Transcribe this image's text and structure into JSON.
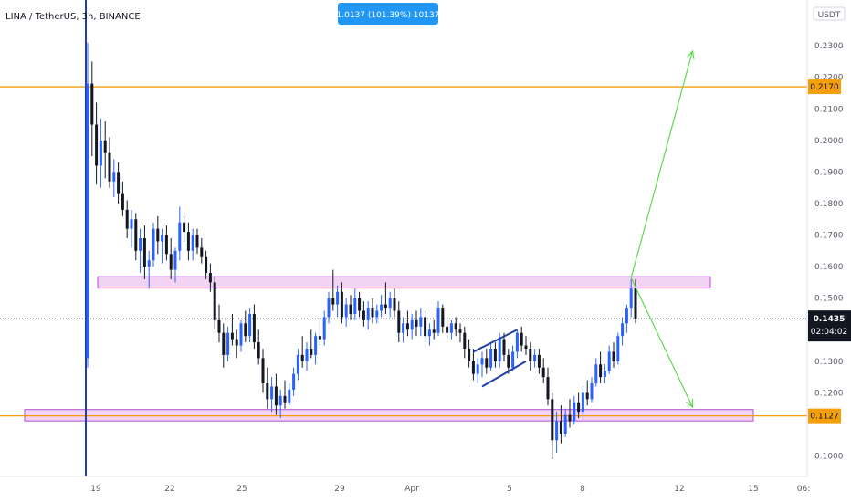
{
  "symbol_title": "LINA / TetherUS, 3h, BINANCE",
  "measure_badge": "1.0137 (101.39%) 10137",
  "currency_label": "USDT",
  "current_price": "0.1435",
  "countdown": "02:04:02",
  "colors": {
    "up": "#2962ff",
    "down": "#131722",
    "level_line": "#f59e0b",
    "zone_fill": "#f3d3f3",
    "zone_stroke": "#b04fd6",
    "arrow": "#5cdc4a",
    "badge_bg": "#2196f3",
    "vline": "#1f3fb0",
    "price_tag_bg": "#131722"
  },
  "chart_data": {
    "type": "candlestick",
    "title": "LINA / TetherUS, 3h, BINANCE",
    "x_ticks": [
      "19",
      "22",
      "25",
      "29",
      "Apr",
      "5",
      "8",
      "12",
      "15",
      "06:"
    ],
    "y_ticks": [
      "0.2300",
      "0.2200",
      "0.2100",
      "0.2000",
      "0.1900",
      "0.1800",
      "0.1700",
      "0.1600",
      "0.1500",
      "0.1300",
      "0.1200",
      "0.1000"
    ],
    "ylim": [
      0.0935,
      0.2445
    ],
    "price_tags": [
      {
        "value": 0.217,
        "label": "0.2170"
      },
      {
        "value": 0.1127,
        "label": "0.1127"
      }
    ],
    "horizontal_levels": [
      0.217,
      0.1127
    ],
    "zones": [
      {
        "low": 0.1532,
        "high": 0.1568
      },
      {
        "low": 0.1111,
        "high": 0.1147
      }
    ],
    "candles": [
      {
        "o": 0.131,
        "h": 0.231,
        "l": 0.128,
        "c": 0.218
      },
      {
        "o": 0.218,
        "h": 0.225,
        "l": 0.195,
        "c": 0.205
      },
      {
        "o": 0.205,
        "h": 0.212,
        "l": 0.186,
        "c": 0.192
      },
      {
        "o": 0.192,
        "h": 0.207,
        "l": 0.185,
        "c": 0.2
      },
      {
        "o": 0.2,
        "h": 0.206,
        "l": 0.188,
        "c": 0.196
      },
      {
        "o": 0.196,
        "h": 0.201,
        "l": 0.185,
        "c": 0.187
      },
      {
        "o": 0.187,
        "h": 0.194,
        "l": 0.182,
        "c": 0.19
      },
      {
        "o": 0.19,
        "h": 0.193,
        "l": 0.18,
        "c": 0.183
      },
      {
        "o": 0.183,
        "h": 0.187,
        "l": 0.176,
        "c": 0.178
      },
      {
        "o": 0.178,
        "h": 0.181,
        "l": 0.169,
        "c": 0.172
      },
      {
        "o": 0.172,
        "h": 0.178,
        "l": 0.166,
        "c": 0.175
      },
      {
        "o": 0.175,
        "h": 0.177,
        "l": 0.162,
        "c": 0.165
      },
      {
        "o": 0.165,
        "h": 0.172,
        "l": 0.158,
        "c": 0.169
      },
      {
        "o": 0.169,
        "h": 0.173,
        "l": 0.156,
        "c": 0.16
      },
      {
        "o": 0.16,
        "h": 0.165,
        "l": 0.153,
        "c": 0.162
      },
      {
        "o": 0.162,
        "h": 0.174,
        "l": 0.16,
        "c": 0.172
      },
      {
        "o": 0.172,
        "h": 0.176,
        "l": 0.164,
        "c": 0.168
      },
      {
        "o": 0.168,
        "h": 0.172,
        "l": 0.161,
        "c": 0.17
      },
      {
        "o": 0.17,
        "h": 0.173,
        "l": 0.162,
        "c": 0.164
      },
      {
        "o": 0.164,
        "h": 0.169,
        "l": 0.156,
        "c": 0.159
      },
      {
        "o": 0.159,
        "h": 0.166,
        "l": 0.155,
        "c": 0.165
      },
      {
        "o": 0.165,
        "h": 0.179,
        "l": 0.162,
        "c": 0.174
      },
      {
        "o": 0.174,
        "h": 0.177,
        "l": 0.168,
        "c": 0.171
      },
      {
        "o": 0.171,
        "h": 0.174,
        "l": 0.162,
        "c": 0.165
      },
      {
        "o": 0.165,
        "h": 0.172,
        "l": 0.162,
        "c": 0.17
      },
      {
        "o": 0.17,
        "h": 0.172,
        "l": 0.164,
        "c": 0.166
      },
      {
        "o": 0.166,
        "h": 0.169,
        "l": 0.161,
        "c": 0.163
      },
      {
        "o": 0.163,
        "h": 0.165,
        "l": 0.156,
        "c": 0.158
      },
      {
        "o": 0.158,
        "h": 0.161,
        "l": 0.152,
        "c": 0.155
      },
      {
        "o": 0.155,
        "h": 0.157,
        "l": 0.14,
        "c": 0.143
      },
      {
        "o": 0.143,
        "h": 0.148,
        "l": 0.136,
        "c": 0.139
      },
      {
        "o": 0.139,
        "h": 0.142,
        "l": 0.128,
        "c": 0.132
      },
      {
        "o": 0.132,
        "h": 0.141,
        "l": 0.13,
        "c": 0.139
      },
      {
        "o": 0.139,
        "h": 0.145,
        "l": 0.135,
        "c": 0.137
      },
      {
        "o": 0.137,
        "h": 0.14,
        "l": 0.131,
        "c": 0.135
      },
      {
        "o": 0.135,
        "h": 0.143,
        "l": 0.133,
        "c": 0.142
      },
      {
        "o": 0.142,
        "h": 0.146,
        "l": 0.136,
        "c": 0.138
      },
      {
        "o": 0.138,
        "h": 0.147,
        "l": 0.136,
        "c": 0.145
      },
      {
        "o": 0.145,
        "h": 0.148,
        "l": 0.134,
        "c": 0.136
      },
      {
        "o": 0.136,
        "h": 0.14,
        "l": 0.129,
        "c": 0.131
      },
      {
        "o": 0.131,
        "h": 0.134,
        "l": 0.12,
        "c": 0.123
      },
      {
        "o": 0.123,
        "h": 0.128,
        "l": 0.115,
        "c": 0.118
      },
      {
        "o": 0.118,
        "h": 0.125,
        "l": 0.114,
        "c": 0.122
      },
      {
        "o": 0.122,
        "h": 0.126,
        "l": 0.113,
        "c": 0.116
      },
      {
        "o": 0.116,
        "h": 0.121,
        "l": 0.112,
        "c": 0.119
      },
      {
        "o": 0.119,
        "h": 0.124,
        "l": 0.115,
        "c": 0.117
      },
      {
        "o": 0.117,
        "h": 0.123,
        "l": 0.116,
        "c": 0.121
      },
      {
        "o": 0.121,
        "h": 0.128,
        "l": 0.119,
        "c": 0.126
      },
      {
        "o": 0.126,
        "h": 0.134,
        "l": 0.124,
        "c": 0.132
      },
      {
        "o": 0.132,
        "h": 0.138,
        "l": 0.128,
        "c": 0.13
      },
      {
        "o": 0.13,
        "h": 0.136,
        "l": 0.127,
        "c": 0.134
      },
      {
        "o": 0.134,
        "h": 0.14,
        "l": 0.131,
        "c": 0.132
      },
      {
        "o": 0.132,
        "h": 0.139,
        "l": 0.129,
        "c": 0.138
      },
      {
        "o": 0.138,
        "h": 0.144,
        "l": 0.135,
        "c": 0.137
      },
      {
        "o": 0.137,
        "h": 0.146,
        "l": 0.135,
        "c": 0.144
      },
      {
        "o": 0.144,
        "h": 0.152,
        "l": 0.142,
        "c": 0.15
      },
      {
        "o": 0.15,
        "h": 0.159,
        "l": 0.146,
        "c": 0.148
      },
      {
        "o": 0.148,
        "h": 0.154,
        "l": 0.144,
        "c": 0.152
      },
      {
        "o": 0.152,
        "h": 0.155,
        "l": 0.142,
        "c": 0.144
      },
      {
        "o": 0.144,
        "h": 0.15,
        "l": 0.141,
        "c": 0.148
      },
      {
        "o": 0.148,
        "h": 0.151,
        "l": 0.143,
        "c": 0.145
      },
      {
        "o": 0.145,
        "h": 0.153,
        "l": 0.143,
        "c": 0.15
      },
      {
        "o": 0.15,
        "h": 0.152,
        "l": 0.144,
        "c": 0.146
      },
      {
        "o": 0.146,
        "h": 0.149,
        "l": 0.141,
        "c": 0.143
      },
      {
        "o": 0.143,
        "h": 0.149,
        "l": 0.14,
        "c": 0.147
      },
      {
        "o": 0.147,
        "h": 0.15,
        "l": 0.142,
        "c": 0.144
      },
      {
        "o": 0.144,
        "h": 0.148,
        "l": 0.142,
        "c": 0.146
      },
      {
        "o": 0.146,
        "h": 0.151,
        "l": 0.144,
        "c": 0.148
      },
      {
        "o": 0.148,
        "h": 0.155,
        "l": 0.145,
        "c": 0.147
      },
      {
        "o": 0.147,
        "h": 0.152,
        "l": 0.144,
        "c": 0.15
      },
      {
        "o": 0.15,
        "h": 0.153,
        "l": 0.144,
        "c": 0.146
      },
      {
        "o": 0.146,
        "h": 0.149,
        "l": 0.136,
        "c": 0.139
      },
      {
        "o": 0.139,
        "h": 0.144,
        "l": 0.136,
        "c": 0.142
      },
      {
        "o": 0.142,
        "h": 0.146,
        "l": 0.138,
        "c": 0.14
      },
      {
        "o": 0.14,
        "h": 0.145,
        "l": 0.137,
        "c": 0.143
      },
      {
        "o": 0.143,
        "h": 0.146,
        "l": 0.138,
        "c": 0.141
      },
      {
        "o": 0.141,
        "h": 0.147,
        "l": 0.138,
        "c": 0.144
      },
      {
        "o": 0.144,
        "h": 0.146,
        "l": 0.136,
        "c": 0.138
      },
      {
        "o": 0.138,
        "h": 0.142,
        "l": 0.135,
        "c": 0.14
      },
      {
        "o": 0.14,
        "h": 0.143,
        "l": 0.137,
        "c": 0.139
      },
      {
        "o": 0.139,
        "h": 0.149,
        "l": 0.138,
        "c": 0.147
      },
      {
        "o": 0.147,
        "h": 0.148,
        "l": 0.139,
        "c": 0.141
      },
      {
        "o": 0.141,
        "h": 0.144,
        "l": 0.137,
        "c": 0.139
      },
      {
        "o": 0.139,
        "h": 0.143,
        "l": 0.137,
        "c": 0.142
      },
      {
        "o": 0.142,
        "h": 0.144,
        "l": 0.138,
        "c": 0.14
      },
      {
        "o": 0.14,
        "h": 0.142,
        "l": 0.136,
        "c": 0.139
      },
      {
        "o": 0.139,
        "h": 0.141,
        "l": 0.131,
        "c": 0.134
      },
      {
        "o": 0.134,
        "h": 0.137,
        "l": 0.128,
        "c": 0.13
      },
      {
        "o": 0.13,
        "h": 0.134,
        "l": 0.124,
        "c": 0.126
      },
      {
        "o": 0.126,
        "h": 0.131,
        "l": 0.123,
        "c": 0.129
      },
      {
        "o": 0.129,
        "h": 0.133,
        "l": 0.125,
        "c": 0.131
      },
      {
        "o": 0.131,
        "h": 0.134,
        "l": 0.126,
        "c": 0.128
      },
      {
        "o": 0.128,
        "h": 0.136,
        "l": 0.127,
        "c": 0.134
      },
      {
        "o": 0.134,
        "h": 0.136,
        "l": 0.128,
        "c": 0.13
      },
      {
        "o": 0.13,
        "h": 0.139,
        "l": 0.128,
        "c": 0.137
      },
      {
        "o": 0.137,
        "h": 0.139,
        "l": 0.13,
        "c": 0.132
      },
      {
        "o": 0.132,
        "h": 0.134,
        "l": 0.126,
        "c": 0.128
      },
      {
        "o": 0.128,
        "h": 0.135,
        "l": 0.127,
        "c": 0.133
      },
      {
        "o": 0.133,
        "h": 0.14,
        "l": 0.131,
        "c": 0.139
      },
      {
        "o": 0.139,
        "h": 0.141,
        "l": 0.133,
        "c": 0.135
      },
      {
        "o": 0.135,
        "h": 0.138,
        "l": 0.132,
        "c": 0.134
      },
      {
        "o": 0.134,
        "h": 0.136,
        "l": 0.127,
        "c": 0.13
      },
      {
        "o": 0.13,
        "h": 0.134,
        "l": 0.128,
        "c": 0.132
      },
      {
        "o": 0.132,
        "h": 0.134,
        "l": 0.126,
        "c": 0.128
      },
      {
        "o": 0.128,
        "h": 0.131,
        "l": 0.123,
        "c": 0.125
      },
      {
        "o": 0.125,
        "h": 0.128,
        "l": 0.116,
        "c": 0.118
      },
      {
        "o": 0.118,
        "h": 0.12,
        "l": 0.099,
        "c": 0.105
      },
      {
        "o": 0.105,
        "h": 0.114,
        "l": 0.101,
        "c": 0.111
      },
      {
        "o": 0.111,
        "h": 0.116,
        "l": 0.104,
        "c": 0.107
      },
      {
        "o": 0.107,
        "h": 0.115,
        "l": 0.106,
        "c": 0.113
      },
      {
        "o": 0.113,
        "h": 0.118,
        "l": 0.109,
        "c": 0.111
      },
      {
        "o": 0.111,
        "h": 0.119,
        "l": 0.11,
        "c": 0.117
      },
      {
        "o": 0.117,
        "h": 0.12,
        "l": 0.112,
        "c": 0.114
      },
      {
        "o": 0.114,
        "h": 0.122,
        "l": 0.113,
        "c": 0.12
      },
      {
        "o": 0.12,
        "h": 0.124,
        "l": 0.116,
        "c": 0.118
      },
      {
        "o": 0.118,
        "h": 0.125,
        "l": 0.117,
        "c": 0.123
      },
      {
        "o": 0.123,
        "h": 0.131,
        "l": 0.122,
        "c": 0.129
      },
      {
        "o": 0.129,
        "h": 0.133,
        "l": 0.123,
        "c": 0.125
      },
      {
        "o": 0.125,
        "h": 0.129,
        "l": 0.123,
        "c": 0.127
      },
      {
        "o": 0.127,
        "h": 0.135,
        "l": 0.126,
        "c": 0.133
      },
      {
        "o": 0.133,
        "h": 0.136,
        "l": 0.128,
        "c": 0.13
      },
      {
        "o": 0.13,
        "h": 0.139,
        "l": 0.129,
        "c": 0.138
      },
      {
        "o": 0.138,
        "h": 0.144,
        "l": 0.135,
        "c": 0.142
      },
      {
        "o": 0.142,
        "h": 0.148,
        "l": 0.139,
        "c": 0.147
      },
      {
        "o": 0.147,
        "h": 0.156,
        "l": 0.144,
        "c": 0.153
      },
      {
        "o": 0.153,
        "h": 0.156,
        "l": 0.142,
        "c": 0.1435
      }
    ],
    "annotations": [
      {
        "kind": "trend_arrow",
        "from": {
          "bar": 124,
          "price": 0.1565
        },
        "to": {
          "bar": 138,
          "price": 0.2283
        }
      },
      {
        "kind": "trend_arrow",
        "from": {
          "bar": 124,
          "price": 0.1565
        },
        "to": {
          "bar": 138,
          "price": 0.1155
        }
      },
      {
        "kind": "flag_channel",
        "upper": [
          {
            "bar": 88,
            "price": 0.133
          },
          {
            "bar": 98,
            "price": 0.14
          }
        ],
        "lower": [
          {
            "bar": 90,
            "price": 0.122
          },
          {
            "bar": 100,
            "price": 0.13
          }
        ]
      }
    ]
  }
}
